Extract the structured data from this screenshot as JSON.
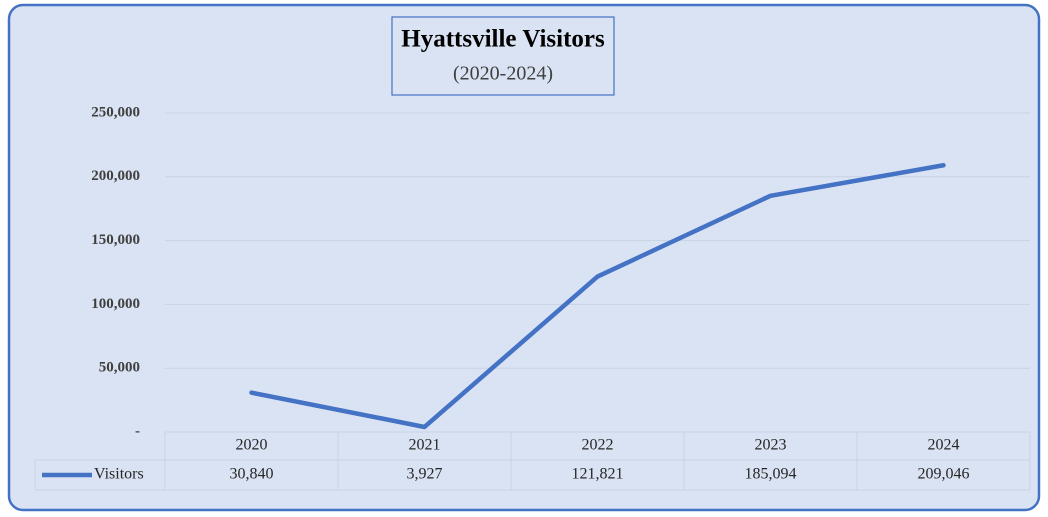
{
  "chart_data": {
    "type": "line",
    "title": "Hyattsville Visitors",
    "subtitle": "(2020-2024)",
    "categories": [
      "2020",
      "2021",
      "2022",
      "2023",
      "2024"
    ],
    "series": [
      {
        "name": "Visitors",
        "color": "#4472c4",
        "values": [
          30840,
          3927,
          121821,
          185094,
          209046
        ],
        "value_labels": [
          "30,840",
          "3,927",
          "121,821",
          "185,094",
          "209,046"
        ]
      }
    ],
    "ylim": [
      0,
      250000
    ],
    "yticks": [
      {
        "value": 0,
        "label": "-"
      },
      {
        "value": 50000,
        "label": "50,000"
      },
      {
        "value": 100000,
        "label": "100,000"
      },
      {
        "value": 150000,
        "label": "150,000"
      },
      {
        "value": 200000,
        "label": "200,000"
      },
      {
        "value": 250000,
        "label": "250,000"
      }
    ],
    "grid": true
  }
}
